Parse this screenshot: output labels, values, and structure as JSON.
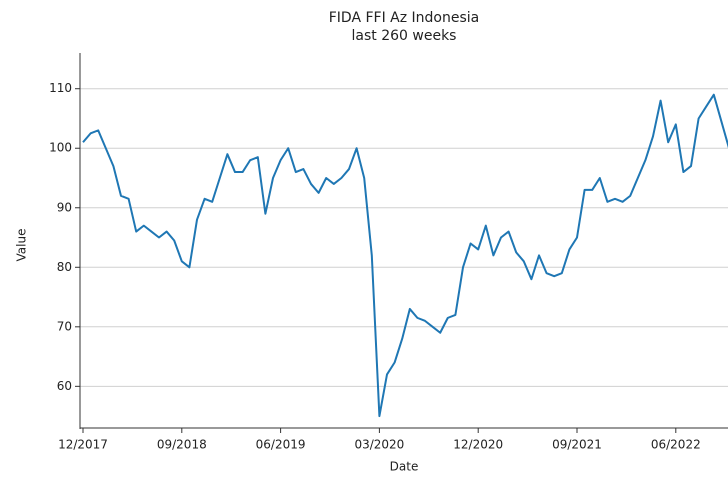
{
  "chart_data": {
    "type": "line",
    "title": "FIDA FFI Az Indonesia",
    "subtitle": "last 260 weeks",
    "x_label": "Date",
    "y_label": "Value",
    "categories": [
      "12/2017",
      null,
      null,
      null,
      null,
      null,
      null,
      null,
      null,
      null,
      null,
      null,
      null,
      "09/2018",
      null,
      null,
      null,
      null,
      null,
      null,
      null,
      null,
      null,
      null,
      null,
      null,
      "06/2019",
      null,
      null,
      null,
      null,
      null,
      null,
      null,
      null,
      null,
      null,
      null,
      null,
      "03/2020",
      null,
      null,
      null,
      null,
      null,
      null,
      null,
      null,
      null,
      null,
      null,
      null,
      "12/2020",
      null,
      null,
      null,
      null,
      null,
      null,
      null,
      null,
      null,
      null,
      null,
      null,
      "09/2021",
      null,
      null,
      null,
      null,
      null,
      null,
      null,
      null,
      null,
      null,
      null,
      null,
      "06/2022",
      null,
      null,
      null,
      null,
      null,
      null,
      null
    ],
    "series": [
      {
        "color": "#1f77b4",
        "values": [
          101,
          102.5,
          103,
          100,
          97,
          92,
          91.5,
          86,
          87,
          86,
          85,
          86,
          84.5,
          81,
          80,
          88,
          91.5,
          91,
          95,
          99,
          96,
          96,
          98,
          98.5,
          89,
          95,
          98,
          100,
          96,
          96.5,
          94,
          92.5,
          95,
          94,
          95,
          96.5,
          100,
          95,
          82,
          55,
          62,
          64,
          68,
          73,
          71.5,
          71,
          70,
          69,
          71.5,
          72,
          80,
          84,
          83,
          87,
          82,
          85,
          86,
          82.5,
          81,
          78,
          82,
          79,
          78.5,
          79,
          83,
          85,
          93,
          93,
          95,
          91,
          91.5,
          91,
          92,
          95,
          98,
          102,
          108,
          101,
          104,
          96,
          97,
          105,
          107,
          109,
          104.5,
          100
        ]
      }
    ],
    "ylim": [
      53,
      116
    ],
    "yticks": [
      60,
      70,
      80,
      90,
      100,
      110
    ],
    "grid": true
  }
}
